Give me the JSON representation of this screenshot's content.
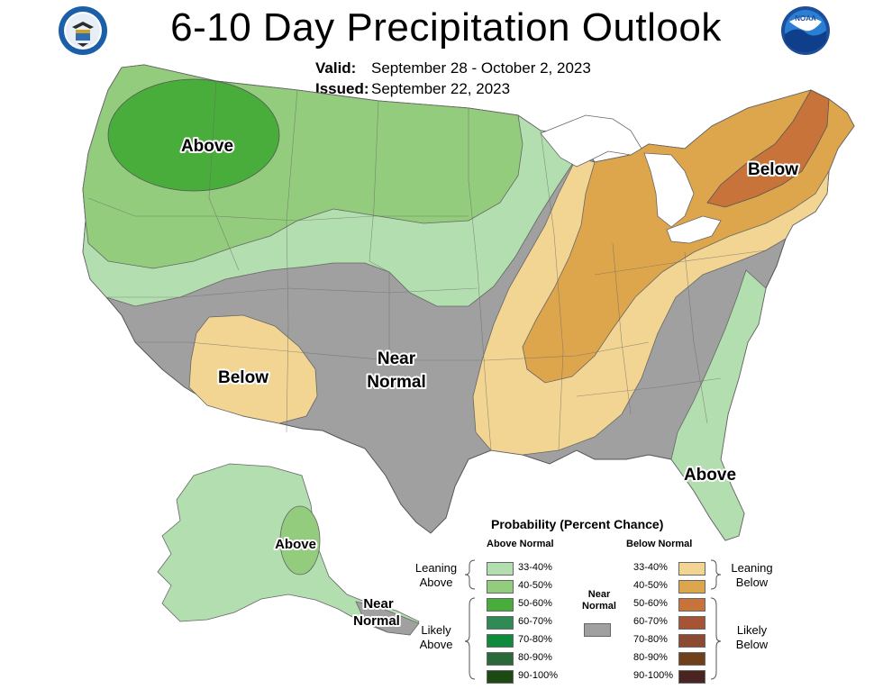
{
  "header": {
    "title": "6-10 Day Precipitation Outlook",
    "valid_label": "Valid:",
    "valid_value": "September 28 - October 2, 2023",
    "issued_label": "Issued:",
    "issued_value": "September 22, 2023"
  },
  "logos": {
    "left": "doc-seal-icon",
    "right": "noaa-logo-icon"
  },
  "region_labels": {
    "nw_above": "Above",
    "ne_below": "Below",
    "sw_below": "Below",
    "center_near": "Near",
    "center_normal": "Normal",
    "se_above": "Above",
    "ak_above": "Above",
    "ak_near": "Near",
    "ak_normal": "Normal"
  },
  "legend": {
    "title": "Probability (Percent Chance)",
    "above_header": "Above Normal",
    "below_header": "Below Normal",
    "near_header_1": "Near",
    "near_header_2": "Normal",
    "leaning_above_1": "Leaning",
    "leaning_above_2": "Above",
    "likely_above_1": "Likely",
    "likely_above_2": "Above",
    "leaning_below_1": "Leaning",
    "leaning_below_2": "Below",
    "likely_below_1": "Likely",
    "likely_below_2": "Below",
    "ranges": [
      "33-40%",
      "40-50%",
      "50-60%",
      "60-70%",
      "70-80%",
      "80-90%",
      "90-100%"
    ],
    "above_colors": [
      "#b3dfb0",
      "#92cc7c",
      "#48ad3a",
      "#2f8a55",
      "#108a3c",
      "#2a6a3a",
      "#1c4a12"
    ],
    "below_colors": [
      "#f2d593",
      "#dea64c",
      "#c8733a",
      "#a65436",
      "#8c4a32",
      "#70401a",
      "#4a2422"
    ],
    "near_color": "#a0a0a0"
  },
  "colors": {
    "above_33_40": "#b3dfb0",
    "above_40_50": "#92cc7c",
    "above_50_60": "#48ad3a",
    "below_33_40": "#f2d593",
    "below_40_50": "#dea64c",
    "below_50_60": "#c8733a",
    "near_normal": "#a0a0a0"
  }
}
